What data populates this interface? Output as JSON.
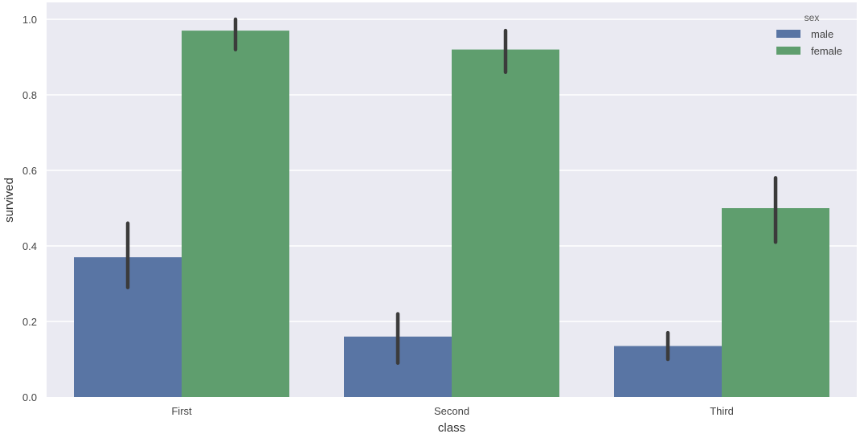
{
  "chart_data": {
    "type": "bar",
    "title": "",
    "xlabel": "class",
    "ylabel": "survived",
    "categories": [
      "First",
      "Second",
      "Third"
    ],
    "series": [
      {
        "name": "male",
        "color": "#5975a4",
        "values": [
          0.37,
          0.16,
          0.135
        ],
        "ci_low": [
          0.29,
          0.09,
          0.1
        ],
        "ci_high": [
          0.46,
          0.22,
          0.17
        ]
      },
      {
        "name": "female",
        "color": "#5f9e6e",
        "values": [
          0.97,
          0.92,
          0.5
        ],
        "ci_low": [
          0.92,
          0.86,
          0.41
        ],
        "ci_high": [
          1.0,
          0.97,
          0.58
        ]
      }
    ],
    "ylim": [
      0,
      1.04
    ],
    "yticks": [
      0.0,
      0.2,
      0.4,
      0.6,
      0.8,
      1.0
    ],
    "ytick_labels": [
      "0.0",
      "0.2",
      "0.4",
      "0.6",
      "0.8",
      "1.0"
    ],
    "grid": true,
    "legend": {
      "title": "sex",
      "position": "upper right",
      "entries": [
        "male",
        "female"
      ]
    },
    "style": {
      "background": "#eaeaf2",
      "grid_color": "#ffffff",
      "errorbar_color": "#3b3b3b"
    }
  }
}
